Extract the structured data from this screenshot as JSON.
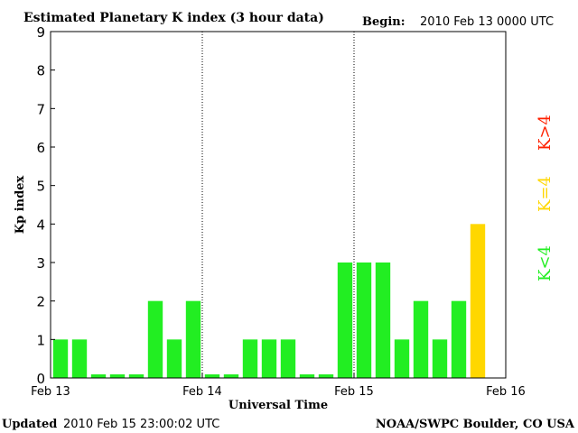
{
  "title": "Estimated Planetary K index (3 hour data)",
  "begin_label": "Begin:",
  "begin_value": "2010 Feb 13 0000 UTC",
  "updated_label": "Updated",
  "updated_value": "2010 Feb 15 23:00:02 UTC",
  "credit": "NOAA/SWPC Boulder, CO USA",
  "legend": [
    {
      "label": "K>4",
      "color": "#ff2000"
    },
    {
      "label": "K=4",
      "color": "#ffd700"
    },
    {
      "label": "K<4",
      "color": "#22ee22"
    }
  ],
  "chart_data": {
    "type": "bar",
    "title": "Estimated Planetary K index (3 hour data)",
    "xlabel": "Universal Time",
    "ylabel": "Kp index",
    "ylim": [
      0,
      9
    ],
    "yticks": [
      "0",
      "1",
      "2",
      "3",
      "4",
      "5",
      "6",
      "7",
      "8",
      "9"
    ],
    "xticks": [
      "Feb 13",
      "Feb 14",
      "Feb 15",
      "Feb 16"
    ],
    "bars_per_day": 8,
    "day_dividers_at": [
      "Feb 14",
      "Feb 15"
    ],
    "values": [
      1,
      1,
      0,
      0,
      0,
      2,
      1,
      2,
      0,
      0,
      1,
      1,
      1,
      0,
      0,
      3,
      3,
      3,
      1,
      2,
      1,
      2,
      4
    ],
    "colors": {
      "below4": "#22ee22",
      "equal4": "#ffd700",
      "above4": "#ff2000"
    }
  }
}
